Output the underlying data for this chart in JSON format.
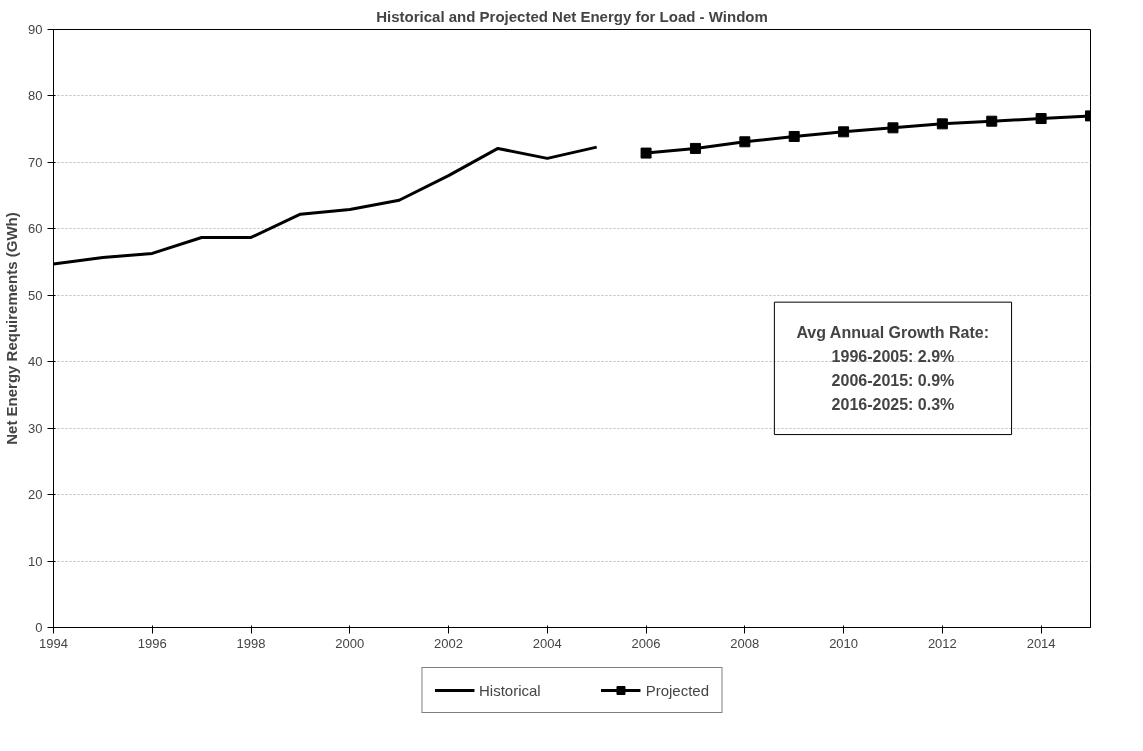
{
  "chart_data": {
    "type": "line",
    "title": "Historical and Projected Net Energy for Load - Windom",
    "ylabel": "Net Energy Requirements (GWh)",
    "xlim": [
      1994,
      2015
    ],
    "xticks": [
      1994,
      1996,
      1998,
      2000,
      2002,
      2004,
      2006,
      2008,
      2010,
      2012,
      2014
    ],
    "ylim": [
      0,
      90
    ],
    "yticks": [
      0,
      10,
      20,
      30,
      40,
      50,
      60,
      70,
      80,
      90
    ],
    "grid": "y",
    "legend": "bottom",
    "series": [
      {
        "name": "Historical",
        "color": "#000000",
        "marker": "none",
        "x": [
          1994,
          1995,
          1996,
          1997,
          1998,
          1999,
          2000,
          2001,
          2002,
          2003,
          2004,
          2005
        ],
        "values": [
          54.7,
          55.7,
          56.3,
          58.7,
          58.7,
          62.2,
          62.9,
          64.3,
          68.0,
          72.1,
          70.6,
          72.3
        ]
      },
      {
        "name": "Projected",
        "color": "#000000",
        "marker": "square",
        "x": [
          2006,
          2007,
          2008,
          2009,
          2010,
          2011,
          2012,
          2013,
          2014,
          2015
        ],
        "values": [
          71.4,
          72.1,
          73.1,
          73.9,
          74.6,
          75.2,
          75.8,
          76.2,
          76.6,
          77.0
        ]
      }
    ],
    "annotations": [
      "Avg Annual Growth Rate:\n1996-2005: 2.9%\n2006-2015: 0.9%\n2016-2025: 0.3%"
    ]
  }
}
